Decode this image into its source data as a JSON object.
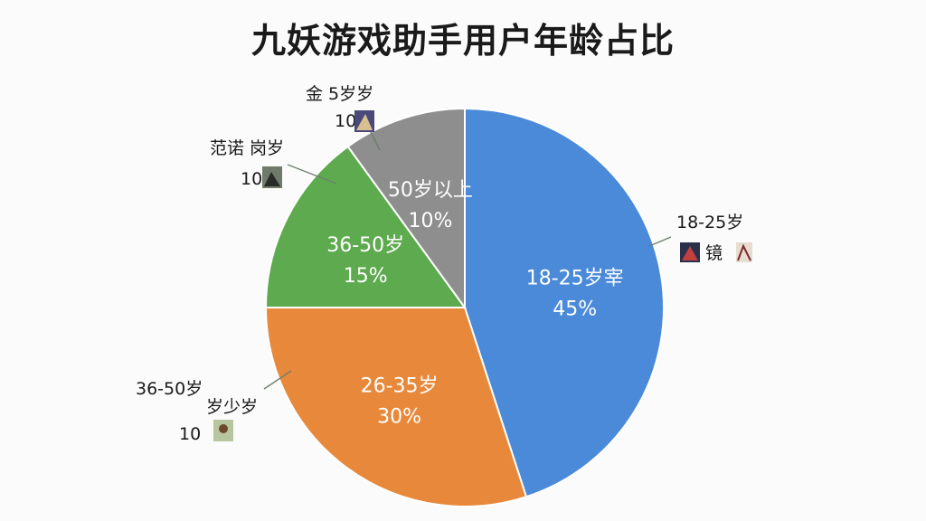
{
  "title": "九妖游戏助手用户年龄占比",
  "chart_data": {
    "type": "pie",
    "title": "九妖游戏助手用户年龄占比",
    "slices": [
      {
        "label": "18-25岁宰",
        "value": 45,
        "value_label": "45%",
        "color": "#4a8ad8"
      },
      {
        "label": "26-35岁",
        "value": 30,
        "value_label": "30%",
        "color": "#e8883a"
      },
      {
        "label": "36-50岁",
        "value": 15,
        "value_label": "15%",
        "color": "#5eaa4e"
      },
      {
        "label": "50岁以上",
        "value": 10,
        "value_label": "10%",
        "color": "#8e8e8e"
      }
    ],
    "external_labels": [
      {
        "line1": "18-25岁",
        "line2": "镜"
      },
      {
        "line1": "36-50岁",
        "line2": "岁少岁",
        "line3": "10"
      },
      {
        "line1": "范诺 岗岁",
        "line2": "10"
      },
      {
        "line1": "金 5岁岁",
        "line2": "10"
      }
    ]
  }
}
